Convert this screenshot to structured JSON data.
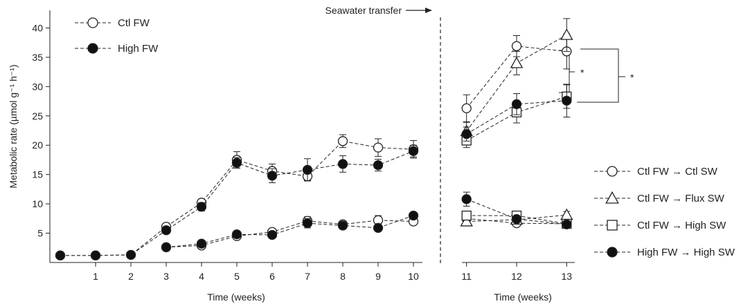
{
  "chart_data": {
    "type": "line",
    "ylabel": "Metabolic rate (µmol g⁻¹ h⁻¹)",
    "ylim": [
      0,
      43
    ],
    "yticks": [
      5,
      10,
      15,
      20,
      25,
      30,
      35,
      40
    ],
    "panels": [
      {
        "xlabel": "Time (weeks)",
        "xlim": [
          0,
          10
        ],
        "xticks": [
          1,
          2,
          3,
          4,
          5,
          6,
          7,
          8,
          9,
          10
        ],
        "series": [
          {
            "name": "Ctl FW",
            "marker": "circle-open",
            "x": [
              0,
              1,
              2,
              3,
              4,
              5,
              6,
              7,
              8,
              9,
              10
            ],
            "y": [
              1.2,
              1.2,
              1.3,
              6.1,
              10.2,
              17.5,
              15.6,
              14.7,
              20.7,
              19.6,
              19.3
            ],
            "err": [
              0,
              0,
              0,
              0.5,
              0.5,
              1.4,
              1.2,
              0.7,
              1.1,
              1.5,
              1.5
            ]
          },
          {
            "name": "High FW",
            "marker": "circle-filled",
            "x": [
              0,
              1,
              2,
              3,
              4,
              5,
              6,
              7,
              8,
              9,
              10
            ],
            "y": [
              1.2,
              1.2,
              1.3,
              5.5,
              9.5,
              17.0,
              14.8,
              15.8,
              16.8,
              16.6,
              19.0
            ],
            "err": [
              0,
              0,
              0,
              0.5,
              0.7,
              0.9,
              1.2,
              1.9,
              1.4,
              1.0,
              1.0
            ]
          },
          {
            "name": "Ctl FW",
            "marker": "circle-open",
            "x": [
              3,
              4,
              5,
              6,
              7,
              8,
              9,
              10
            ],
            "y": [
              2.6,
              2.9,
              4.5,
              5.2,
              7.1,
              6.5,
              7.2,
              7.0
            ],
            "err": [
              0.3,
              0.3,
              0.4,
              0.4,
              0.7,
              0.5,
              0.8,
              0.5
            ]
          },
          {
            "name": "High FW",
            "marker": "circle-filled",
            "x": [
              3,
              4,
              5,
              6,
              7,
              8,
              9,
              10
            ],
            "y": [
              2.6,
              3.2,
              4.8,
              4.7,
              6.7,
              6.3,
              5.9,
              8.0
            ],
            "err": [
              0.3,
              0.3,
              0.4,
              0.4,
              0.8,
              0.6,
              0.5,
              0.5
            ]
          }
        ]
      },
      {
        "xlabel": "Time (weeks)",
        "xlim": [
          10.7,
          13.3
        ],
        "xticks": [
          11,
          12,
          13
        ],
        "series": [
          {
            "name": "Ctl FW → Ctl SW",
            "marker": "circle-open",
            "x": [
              11,
              12,
              13
            ],
            "y": [
              26.3,
              36.9,
              36.0
            ],
            "err": [
              2.3,
              1.8,
              3.0
            ]
          },
          {
            "name": "Ctl FW → Flux SW",
            "marker": "triangle-open",
            "x": [
              11,
              12,
              13
            ],
            "y": [
              22.4,
              34.0,
              38.8
            ],
            "err": [
              1.5,
              2.0,
              2.8
            ]
          },
          {
            "name": "Ctl FW → High SW",
            "marker": "square-open",
            "x": [
              11,
              12,
              13
            ],
            "y": [
              20.8,
              25.6,
              28.3
            ],
            "err": [
              1.2,
              1.8,
              2.0
            ]
          },
          {
            "name": "High FW → High SW",
            "marker": "circle-filled",
            "x": [
              11,
              12,
              13
            ],
            "y": [
              21.9,
              27.0,
              27.6
            ],
            "err": [
              1.2,
              1.8,
              2.8
            ]
          },
          {
            "name": "Ctl FW → Ctl SW",
            "marker": "circle-open",
            "x": [
              11,
              12,
              13
            ],
            "y": [
              7.5,
              6.7,
              6.6
            ],
            "err": [
              0.5,
              0.4,
              0.4
            ]
          },
          {
            "name": "Ctl FW → Flux SW",
            "marker": "triangle-open",
            "x": [
              11,
              12,
              13
            ],
            "y": [
              7.0,
              7.3,
              8.1
            ],
            "err": [
              0.5,
              0.5,
              0.6
            ]
          },
          {
            "name": "Ctl FW → High SW",
            "marker": "square-open",
            "x": [
              11,
              12,
              13
            ],
            "y": [
              8.0,
              8.0,
              6.6
            ],
            "err": [
              0.6,
              0.6,
              0.4
            ]
          },
          {
            "name": "High FW → High SW",
            "marker": "circle-filled",
            "x": [
              11,
              12,
              13
            ],
            "y": [
              10.8,
              7.4,
              6.5
            ],
            "err": [
              1.2,
              0.6,
              0.4
            ]
          }
        ]
      }
    ],
    "legends": [
      {
        "placement": "top-left",
        "entries": [
          {
            "label": "Ctl FW",
            "marker": "circle-open"
          },
          {
            "label": "High FW",
            "marker": "circle-filled"
          }
        ]
      },
      {
        "placement": "right",
        "entries": [
          {
            "label": "Ctl FW → Ctl SW",
            "marker": "circle-open"
          },
          {
            "label": "Ctl FW → Flux SW",
            "marker": "triangle-open"
          },
          {
            "label": "Ctl FW → High SW",
            "marker": "square-open"
          },
          {
            "label": "High FW → High SW",
            "marker": "circle-filled"
          }
        ]
      }
    ],
    "annotations": {
      "transfer_label": "Seawater transfer",
      "significance": "*"
    }
  }
}
